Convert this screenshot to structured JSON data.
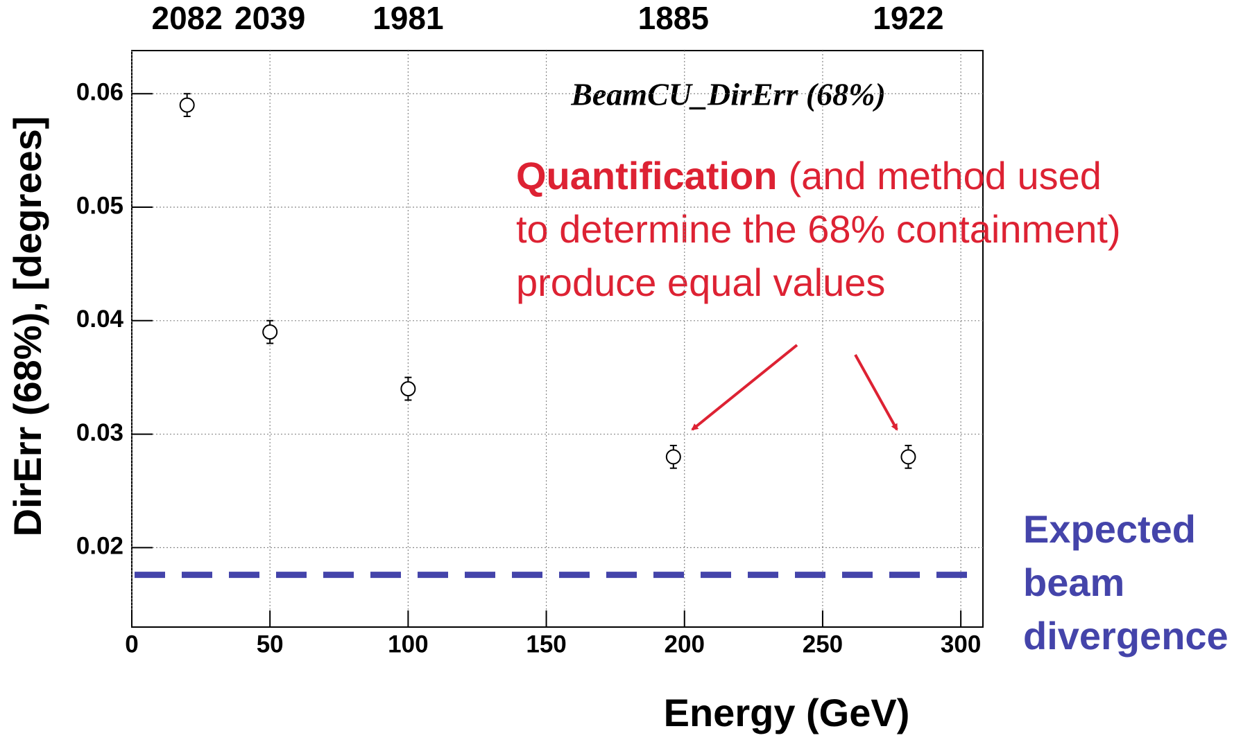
{
  "chart_data": {
    "type": "scatter",
    "title": "BeamCU_DirErr (68%)",
    "xlabel": "Energy (GeV)",
    "ylabel": "DirErr (68%), [degrees]",
    "x": [
      20,
      50,
      100,
      196,
      281
    ],
    "series": [
      {
        "color": "#000000",
        "values": [
          0.059,
          0.039,
          0.034,
          0.028,
          0.028
        ],
        "errors": [
          0.001,
          0.001,
          0.001,
          0.001,
          0.001
        ]
      }
    ],
    "top_labels": [
      "2082",
      "2039",
      "1981",
      "1885",
      "1922"
    ],
    "xlim": [
      0,
      308
    ],
    "ylim": [
      0.013,
      0.0638
    ],
    "xticks": [
      0,
      50,
      100,
      150,
      200,
      250,
      300
    ],
    "yticks": [
      0.02,
      0.03,
      0.04,
      0.05,
      0.06
    ],
    "grid": true,
    "reference_line": {
      "value": 0.0176,
      "color": "#4444aa",
      "label": [
        "Expected",
        "beam",
        "divergence"
      ]
    },
    "annotation": {
      "color": "#dd2233",
      "bold": "Quantification",
      "lines": [
        "(and method used",
        "to determine the 68% containment)",
        "produce equal values"
      ]
    }
  }
}
